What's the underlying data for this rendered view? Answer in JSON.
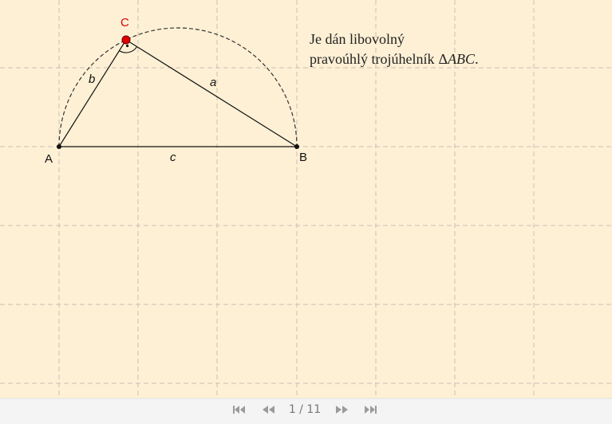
{
  "points": {
    "A": "A",
    "B": "B",
    "C": "C"
  },
  "sides": {
    "a": "a",
    "b": "b",
    "c": "c"
  },
  "text": {
    "line1": "Je dán libovolný",
    "line2": "pravoúhlý trojúhelník",
    "delta": "Δ",
    "name": "ABC",
    "period": "."
  },
  "nav": {
    "page": "1 / 11"
  }
}
